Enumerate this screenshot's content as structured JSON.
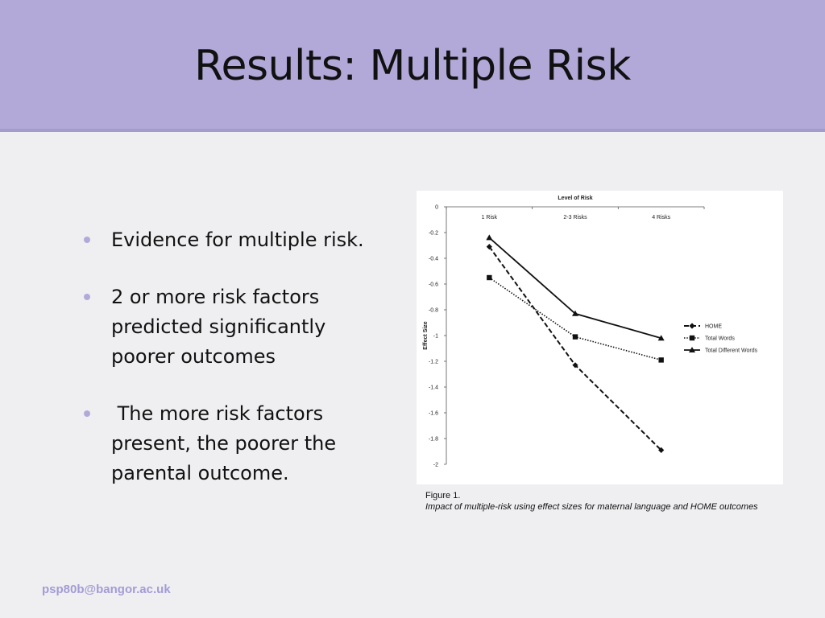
{
  "slide": {
    "title": "Results: Multiple Risk",
    "bullets": [
      "Evidence for multiple risk.",
      "2 or more risk factors predicted significantly poorer outcomes",
      " The more risk factors present, the poorer the parental outcome."
    ],
    "footer": "psp80b@bangor.ac.uk",
    "accent_color": "#b2a9d9"
  },
  "figure": {
    "label": "Figure 1.",
    "description": "Impact of multiple-risk using effect sizes for maternal language and HOME outcomes"
  },
  "chart_data": {
    "type": "line",
    "title": "Level of Risk",
    "xlabel": "",
    "ylabel": "Effect Size",
    "categories": [
      "1 Risk",
      "2-3 Risks",
      "4 Risks"
    ],
    "ylim": [
      -2,
      0
    ],
    "yticks": [
      0,
      -0.2,
      -0.4,
      -0.6,
      -0.8,
      -1,
      -1.2,
      -1.4,
      -1.6,
      -1.8,
      -2
    ],
    "grid": false,
    "legend_position": "right",
    "series": [
      {
        "name": "HOME",
        "values": [
          -0.31,
          -1.23,
          -1.89
        ],
        "marker": "diamond",
        "dash": "dashed"
      },
      {
        "name": "Total Words",
        "values": [
          -0.55,
          -1.01,
          -1.19
        ],
        "marker": "square",
        "dash": "dotted"
      },
      {
        "name": "Total Different Words",
        "values": [
          -0.24,
          -0.83,
          -1.02
        ],
        "marker": "triangle",
        "dash": "solid"
      }
    ]
  }
}
